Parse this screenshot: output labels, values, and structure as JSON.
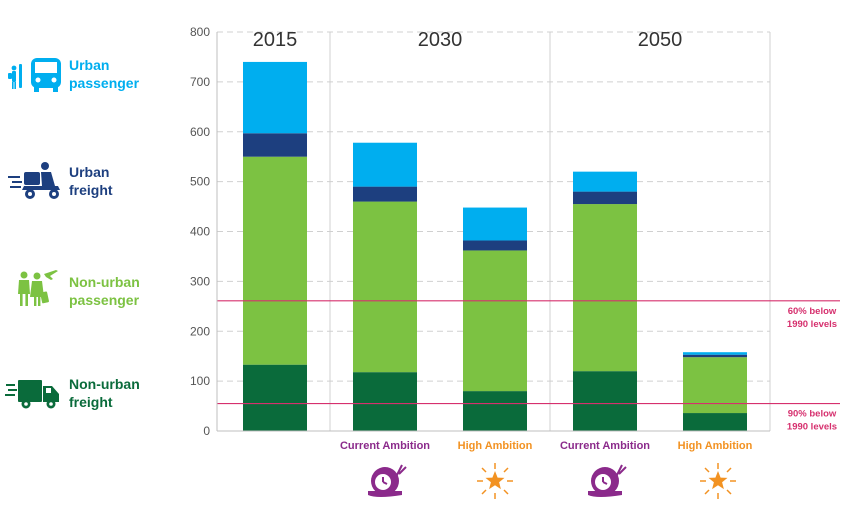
{
  "chart_data": {
    "type": "bar",
    "stacked": true,
    "ylim": [
      0,
      800
    ],
    "yticks": [
      0,
      100,
      200,
      300,
      400,
      500,
      600,
      700,
      800
    ],
    "grid": true,
    "groups": [
      {
        "label": "2015",
        "bars": [
          0
        ]
      },
      {
        "label": "2030",
        "bars": [
          1,
          2
        ]
      },
      {
        "label": "2050",
        "bars": [
          3,
          4
        ]
      }
    ],
    "categories": [
      "",
      "Current Ambition",
      "High Ambition",
      "Current Ambition",
      "High Ambition"
    ],
    "category_icons": [
      "",
      "snail-clock-icon",
      "star-burst-icon",
      "snail-clock-icon",
      "star-burst-icon"
    ],
    "series": [
      {
        "name": "Non-urban freight",
        "color": "#0a6b3b",
        "values": [
          133,
          118,
          80,
          120,
          36
        ]
      },
      {
        "name": "Non-urban passenger",
        "color": "#7cc242",
        "values": [
          417,
          342,
          282,
          335,
          112
        ]
      },
      {
        "name": "Urban freight",
        "color": "#1d3f7f",
        "values": [
          47,
          30,
          20,
          25,
          5
        ]
      },
      {
        "name": "Urban passenger",
        "color": "#00aeef",
        "values": [
          143,
          88,
          66,
          40,
          5
        ]
      }
    ],
    "reference_lines": [
      {
        "value": 261,
        "label": [
          "60% below",
          "1990 levels"
        ],
        "color": "#d6306e"
      },
      {
        "value": 55,
        "label": [
          "90% below",
          "1990 levels"
        ],
        "color": "#d6306e"
      }
    ]
  },
  "legend": [
    {
      "lines": [
        "Urban",
        "passenger"
      ],
      "color": "#00aeef",
      "icon": "bus-icon"
    },
    {
      "lines": [
        "Urban",
        "freight"
      ],
      "color": "#1d3f7f",
      "icon": "delivery-scooter-icon"
    },
    {
      "lines": [
        "Non-urban",
        "passenger"
      ],
      "color": "#7cc242",
      "icon": "travelers-plane-icon"
    },
    {
      "lines": [
        "Non-urban",
        "freight"
      ],
      "color": "#0a6b3b",
      "icon": "truck-icon"
    }
  ],
  "colors": {
    "current_ambition": "#8b2a8b",
    "high_ambition": "#f29222",
    "reference": "#d6306e"
  }
}
